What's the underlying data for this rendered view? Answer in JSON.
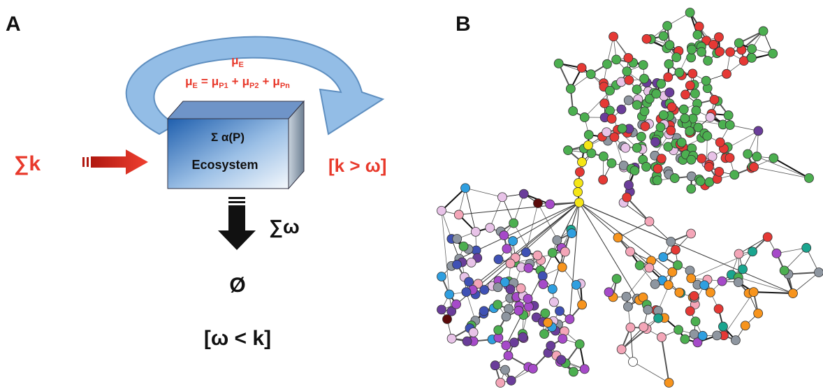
{
  "panels": {
    "left": "A",
    "right": "B"
  },
  "diagram": {
    "mu": [
      "μ",
      "E"
    ],
    "equation": [
      [
        "μ",
        "E"
      ],
      "=",
      [
        "μ",
        "P1"
      ],
      "+",
      [
        "μ",
        "P2"
      ],
      "+",
      [
        "μ",
        "Pn"
      ]
    ],
    "box_top": "Σ α(P)",
    "box_label": "Ecosystem",
    "input": "∑k",
    "right_condition": "[k > ω]",
    "output": "∑ω",
    "empty": "Ø",
    "bottom_condition": "[ω < k]"
  }
}
